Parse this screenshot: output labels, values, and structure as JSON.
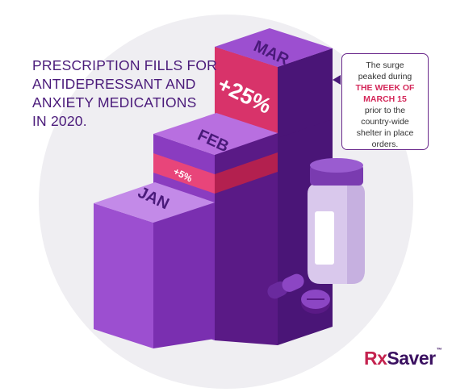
{
  "title_lines": [
    "PRESCRIPTION FILLS FOR",
    "ANTIDEPRESSANT AND",
    "ANXIETY MEDICATIONS",
    "IN 2020."
  ],
  "chart_data": {
    "type": "bar",
    "style": "3d-isometric-stacked-steps",
    "categories": [
      "JAN",
      "FEB",
      "MAR"
    ],
    "increase_labels": [
      "",
      "+5%",
      "+25%"
    ],
    "increase_percent": [
      0,
      5,
      25
    ],
    "colors": {
      "bar_front": "#9c4fd0",
      "bar_side": "#7a2fb0",
      "bar_top": "#c07ae6",
      "increase_top": "#e8457a",
      "increase_front": "#d8336a",
      "increase_side": "#b3204f",
      "back_dark": "#5a1a86",
      "label": "#4a1a7a"
    }
  },
  "callout": {
    "lines": [
      "The surge",
      "peaked during"
    ],
    "highlight_lines": [
      "THE WEEK OF",
      "MARCH 15"
    ],
    "tail_lines": [
      "prior to the",
      "country-wide",
      "shelter in place",
      "orders."
    ]
  },
  "logo": {
    "rx": "Rx",
    "saver": "Saver",
    "tm": "™"
  }
}
